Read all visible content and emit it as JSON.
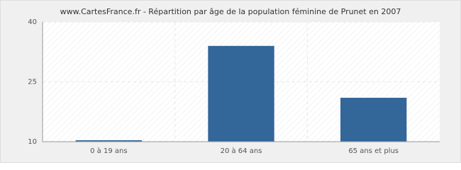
{
  "chart_data": {
    "type": "bar",
    "title": "www.CartesFrance.fr - Répartition par âge de la population féminine de Prunet en 2007",
    "categories": [
      "0 à 19 ans",
      "20 à 64 ans",
      "65 ans et plus"
    ],
    "values": [
      10,
      34,
      21
    ],
    "color": "#336699",
    "ylim": [
      10,
      40
    ],
    "yticks": [
      10,
      25,
      40
    ],
    "grid": true
  }
}
